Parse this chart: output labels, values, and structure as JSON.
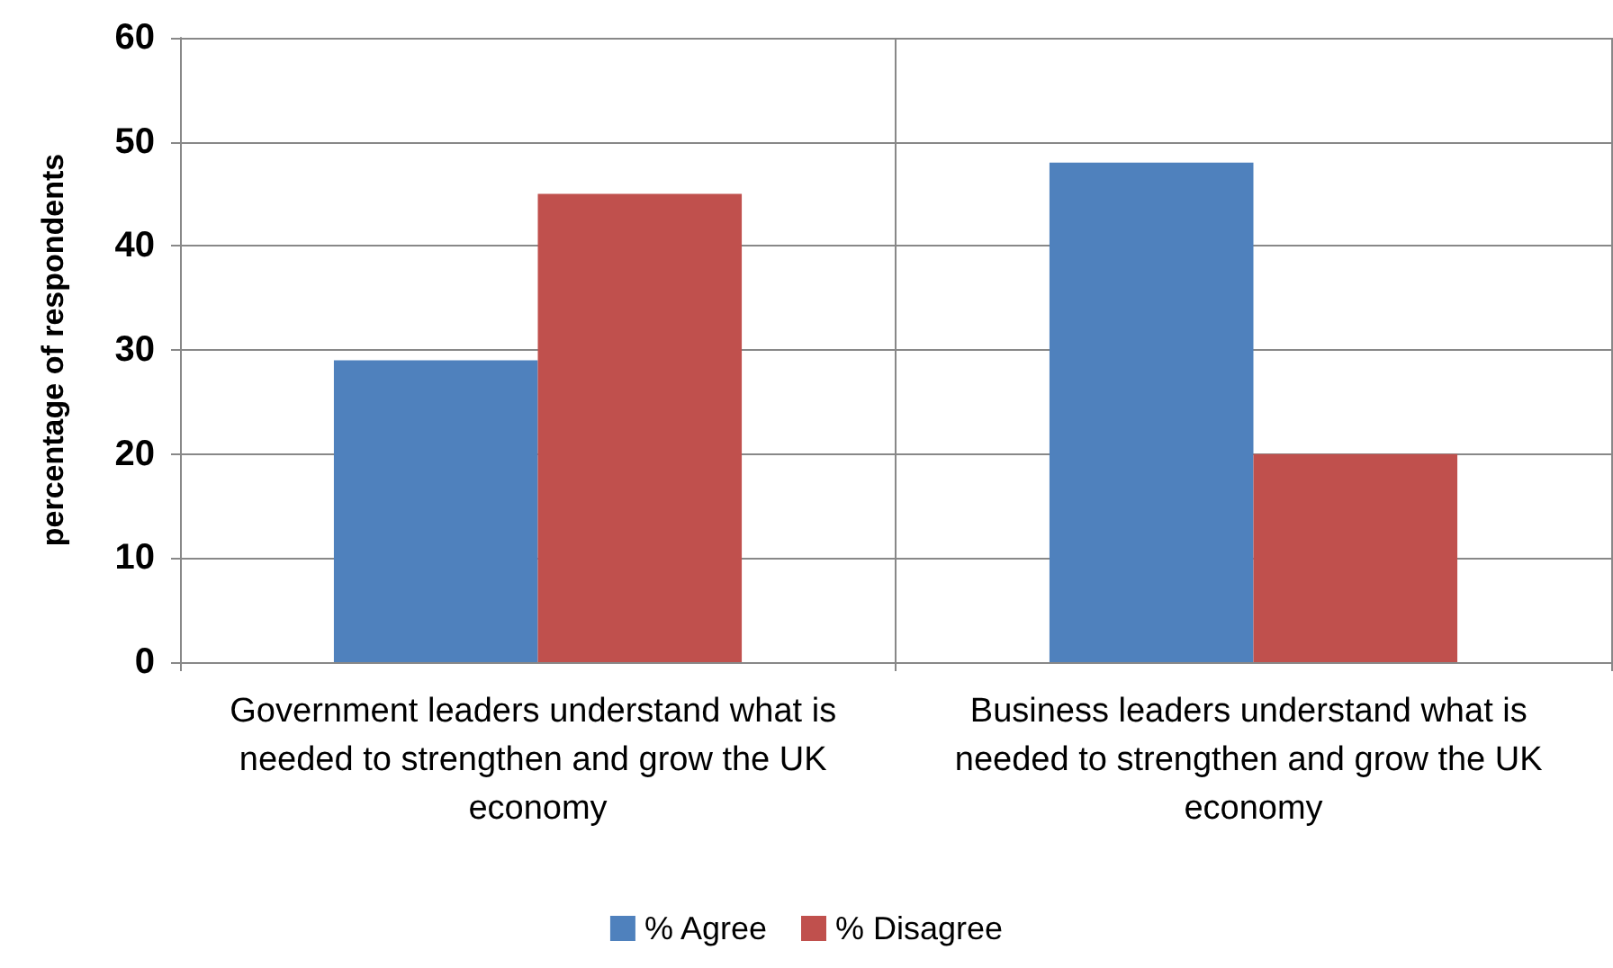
{
  "chart_data": {
    "type": "bar",
    "ylabel": "percentage of respondents",
    "categories": [
      "Government leaders understand what is needed to strengthen and grow the UK economy",
      "Business leaders understand what is needed to strengthen and grow the UK economy"
    ],
    "series": [
      {
        "name": "% Agree",
        "color": "#4f81bd",
        "values": [
          29,
          48
        ]
      },
      {
        "name": "% Disagree",
        "color": "#c0504d",
        "values": [
          45,
          20
        ]
      }
    ],
    "ylim": [
      0,
      60
    ],
    "yticks": [
      0,
      10,
      20,
      30,
      40,
      50,
      60
    ],
    "grid": true,
    "legend": "bottom"
  }
}
